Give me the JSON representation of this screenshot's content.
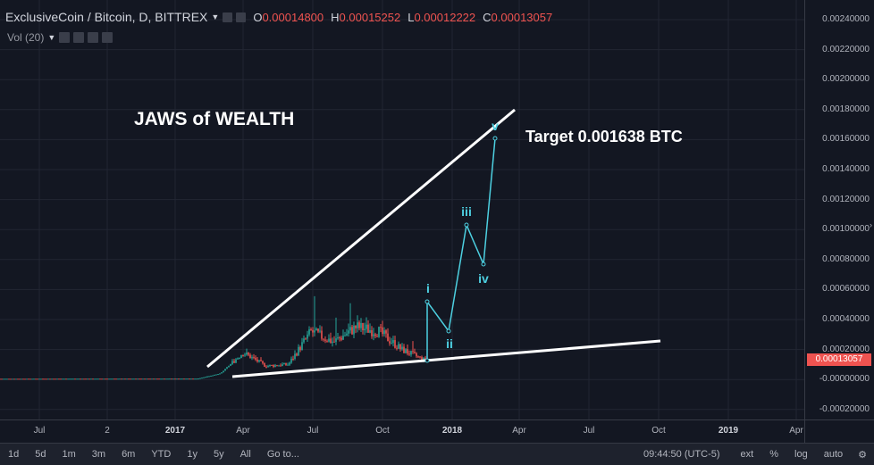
{
  "legend": {
    "symbol": "ExclusiveCoin / Bitcoin, D, BITTREX",
    "open_label": "O",
    "open": "0.00014800",
    "high_label": "H",
    "high": "0.00015252",
    "low_label": "L",
    "low": "0.00012222",
    "close_label": "C",
    "close": "0.00013057"
  },
  "volume_label": "Vol (20)",
  "annotations": {
    "title": "JAWS of WEALTH",
    "target": "Target 0.001638 BTC",
    "waves": [
      "i",
      "ii",
      "iii",
      "iv",
      "v"
    ]
  },
  "price_axis": {
    "ticks": [
      "0.00240000",
      "0.00220000",
      "0.00200000",
      "0.00180000",
      "0.00160000",
      "0.00140000",
      "0.00120000",
      "0.00100000",
      "0.00080000",
      "0.00060000",
      "0.00040000",
      "0.00020000",
      "-0.00000000",
      "-0.00020000"
    ],
    "current_price": "0.00013057"
  },
  "time_axis": {
    "ticks": [
      "Jul",
      "2",
      "2017",
      "Apr",
      "Jul",
      "Oct",
      "2018",
      "Apr",
      "Jul",
      "Oct",
      "2019",
      "Apr"
    ]
  },
  "bottom_bar": {
    "timeframes": [
      "1d",
      "5d",
      "1m",
      "3m",
      "6m",
      "YTD",
      "1y",
      "5y",
      "All",
      "Go to..."
    ],
    "clock": "09:44:50 (UTC-5)",
    "options": [
      "ext",
      "%",
      "log",
      "auto"
    ]
  },
  "colors": {
    "background": "#131722",
    "candle_up": "#26a69a",
    "candle_down": "#ef5350",
    "wave_line": "#4dd0e1",
    "trendline": "#ffffff",
    "price_tag": "#ef5350"
  },
  "chart_data": {
    "type": "candlestick",
    "ylim": [
      -0.0003,
      0.0025
    ],
    "trendlines": [
      {
        "name": "upper",
        "from": [
          "2017-02",
          3e-05
        ],
        "to": [
          "2018-04",
          0.0018
        ]
      },
      {
        "name": "lower",
        "from": [
          "2017-03",
          -0.0
        ],
        "to": [
          "2018-10",
          0.00024
        ]
      }
    ],
    "elliott_waves": [
      {
        "label": "start",
        "date": "2017-12",
        "price": 0.00012
      },
      {
        "label": "i",
        "date": "2017-12",
        "price": 0.00051
      },
      {
        "label": "ii",
        "date": "2018-01",
        "price": 0.00031
      },
      {
        "label": "iii",
        "date": "2018-02",
        "price": 0.00102
      },
      {
        "label": "iv",
        "date": "2018-03",
        "price": 0.00076
      },
      {
        "label": "v",
        "date": "2018-03",
        "price": 0.00161
      }
    ],
    "price_profile": [
      {
        "date": "2016-06",
        "price": 5e-06
      },
      {
        "date": "2017-02",
        "price": 6e-06
      },
      {
        "date": "2017-03",
        "price": 4e-05
      },
      {
        "date": "2017-04",
        "price": 0.00018
      },
      {
        "date": "2017-05",
        "price": 9e-05
      },
      {
        "date": "2017-06",
        "price": 0.0001
      },
      {
        "date": "2017-07",
        "price": 0.00032
      },
      {
        "date": "2017-08",
        "price": 0.00025
      },
      {
        "date": "2017-09",
        "price": 0.00035
      },
      {
        "date": "2017-10",
        "price": 0.00032
      },
      {
        "date": "2017-11",
        "price": 0.0002
      },
      {
        "date": "2017-12",
        "price": 0.00013
      }
    ]
  }
}
